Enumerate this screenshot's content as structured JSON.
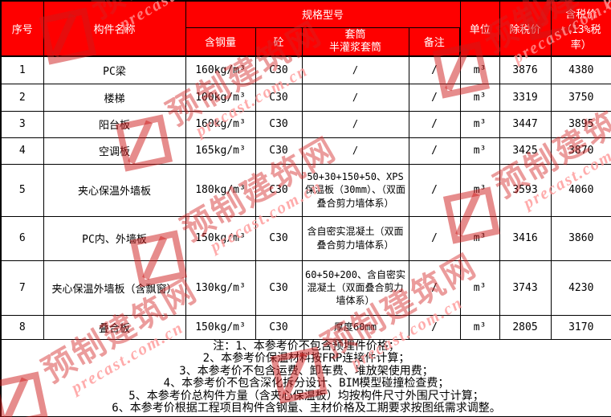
{
  "watermark": {
    "site_name": "预制建筑网",
    "site_url": "precast.com.cn"
  },
  "colors": {
    "header_bg": "#fe0000",
    "header_text": "#ffffff",
    "border": "#000000",
    "watermark_red": "#d22323",
    "watermark_pink": "#ff9696"
  },
  "table": {
    "header": {
      "no": "序号",
      "name": "构件名称",
      "spec": "规格型号",
      "steel": "含钢量",
      "concrete": "砼",
      "sleeve": "套筒\n半灌浆套筒",
      "remark": "备注",
      "unit": "单位",
      "price_ex": "除税价",
      "price_inc": "含税价（13%税率）"
    },
    "rows": [
      {
        "no": "1",
        "name": "PC梁",
        "steel": "160kg/m³",
        "concrete": "C30",
        "sleeve": "/",
        "remark": "/",
        "unit": "m³",
        "price_ex": "3876",
        "price_inc": "4380"
      },
      {
        "no": "2",
        "name": "楼梯",
        "steel": "100kg/m³",
        "concrete": "C30",
        "sleeve": "/",
        "remark": "/",
        "unit": "m³",
        "price_ex": "3319",
        "price_inc": "3750"
      },
      {
        "no": "3",
        "name": "阳台板",
        "steel": "160kg/m³",
        "concrete": "C30",
        "sleeve": "/",
        "remark": "/",
        "unit": "m³",
        "price_ex": "3447",
        "price_inc": "3895"
      },
      {
        "no": "4",
        "name": "空调板",
        "steel": "165kg/m³",
        "concrete": "C30",
        "sleeve": "/",
        "remark": "/",
        "unit": "m³",
        "price_ex": "3425",
        "price_inc": "3870"
      },
      {
        "no": "5",
        "name": "夹心保温外墙板",
        "steel": "180kg/m³",
        "concrete": "C30",
        "sleeve": "50+30+150+50、XPS保温板（30mm）、（双面叠合剪力墙体系）",
        "remark": "/",
        "unit": "m³",
        "price_ex": "3593",
        "price_inc": "4060"
      },
      {
        "no": "6",
        "name": "PC内、外墙板",
        "steel": "150kg/m³",
        "concrete": "C30",
        "sleeve": "含自密实混凝土（双面叠合剪力墙体系）",
        "remark": "/",
        "unit": "m³",
        "price_ex": "3416",
        "price_inc": "3860"
      },
      {
        "no": "7",
        "name": "夹心保温外墙板（含飘窗）",
        "steel": "130kg/m³",
        "concrete": "C30",
        "sleeve": "60+50+200、含自密实混凝土（双面叠合剪力墙体系）",
        "remark": "/",
        "unit": "m³",
        "price_ex": "3743",
        "price_inc": "4230"
      },
      {
        "no": "8",
        "name": "叠合板",
        "steel": "150kg/m³",
        "concrete": "C30",
        "sleeve": "厚度60mm",
        "remark": "/",
        "unit": "m³",
        "price_ex": "2805",
        "price_inc": "3170"
      }
    ],
    "notes": [
      "注：1、本参考价不包含预埋件价格；",
      "2、本参考价保温材料按FRP连接件计算；",
      "3、本参考价不包含运费、卸车费、堆放架使用费；",
      "4、本参考价不包含深化拆分设计、BIM模型碰撞检查费；",
      "5、本参考价总构件方量（含夹心保温板）均按构件尺寸外围尺寸计算；",
      "6、本参考价根据工程项目构件含钢量、主材价格及工期要求按图纸需求调整。"
    ]
  }
}
